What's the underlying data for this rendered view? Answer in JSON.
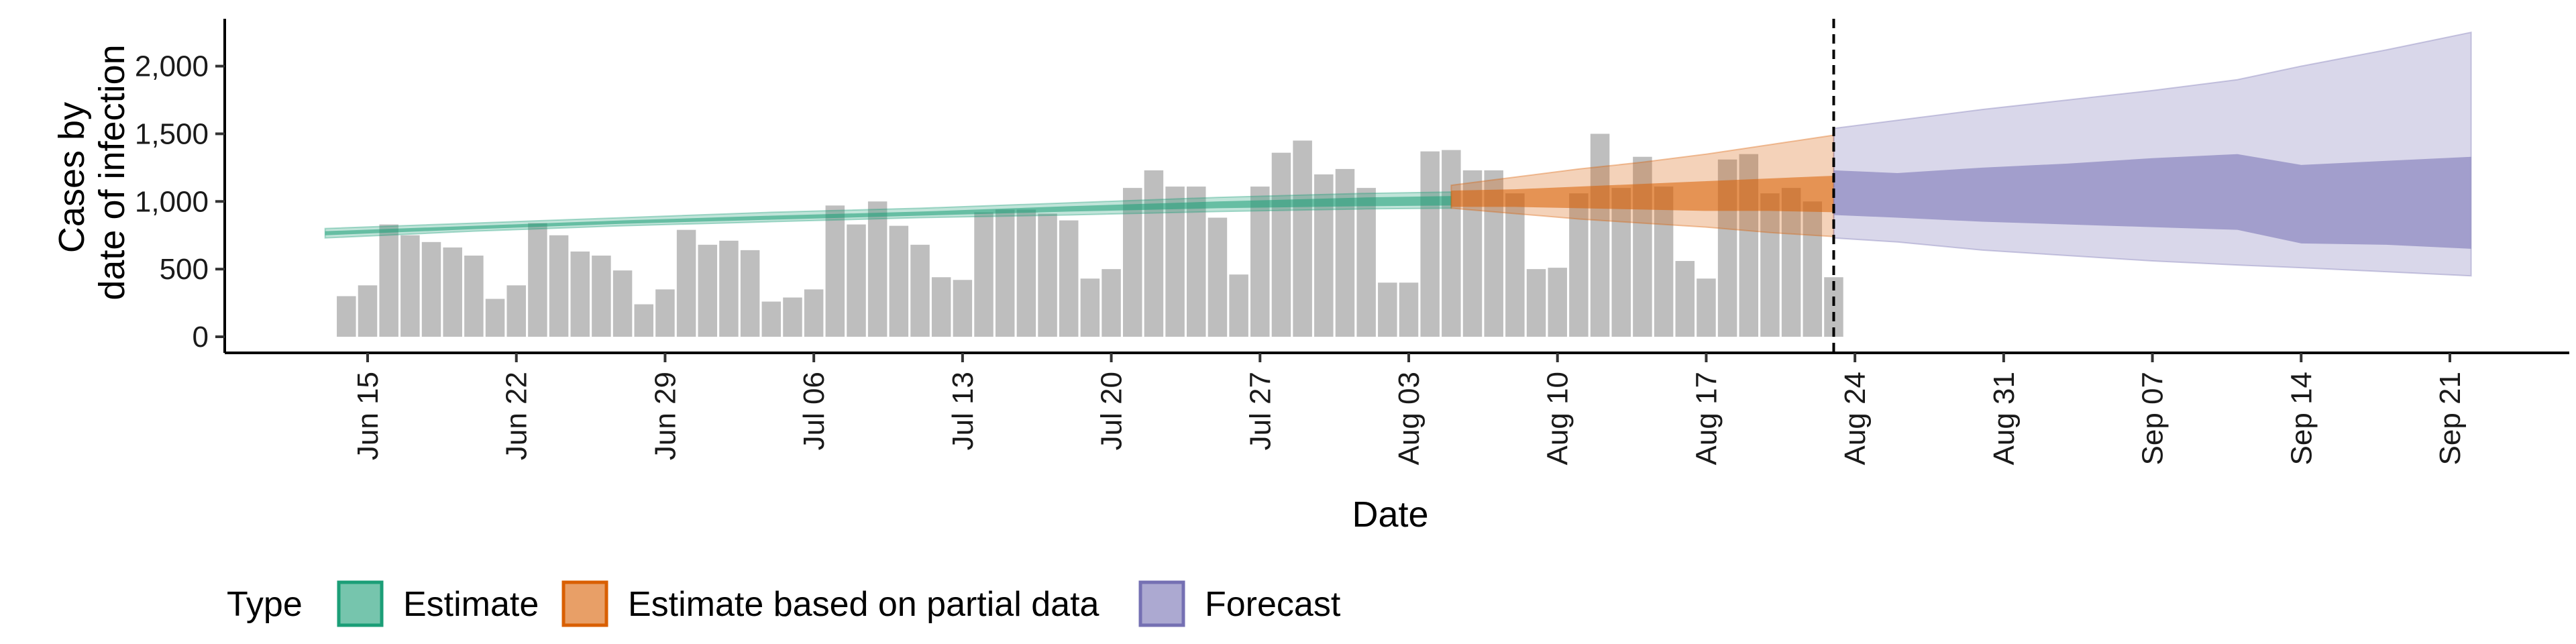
{
  "chart_data": {
    "type": "bar",
    "xlabel": "Date",
    "ylabel_lines": [
      "Cases by",
      "date of infection"
    ],
    "ylim": [
      0,
      2350
    ],
    "yticks": [
      0,
      500,
      1000,
      1500,
      2000
    ],
    "ytick_labels": [
      "0",
      "500",
      "1,000",
      "1,500",
      "2,000"
    ],
    "x_tick_labels": [
      "Jun 15",
      "Jun 22",
      "Jun 29",
      "Jul 06",
      "Jul 13",
      "Jul 20",
      "Jul 27",
      "Aug 03",
      "Aug 10",
      "Aug 17",
      "Aug 24",
      "Aug 31",
      "Sep 07",
      "Sep 14",
      "Sep 21"
    ],
    "bars": {
      "start_date": "2020-06-14",
      "values": [
        300,
        380,
        830,
        750,
        700,
        660,
        600,
        280,
        380,
        840,
        750,
        630,
        600,
        490,
        240,
        350,
        790,
        680,
        710,
        640,
        260,
        290,
        350,
        970,
        830,
        1000,
        820,
        680,
        440,
        420,
        920,
        940,
        940,
        910,
        860,
        430,
        500,
        1100,
        1230,
        1110,
        1110,
        880,
        460,
        1110,
        1360,
        1450,
        1200,
        1240,
        1100,
        400,
        400,
        1370,
        1380,
        1230,
        1230,
        1060,
        500,
        510,
        1060,
        1500,
        1100,
        1330,
        1110,
        560,
        430,
        1310,
        1350,
        1060,
        1100,
        1000,
        440
      ],
      "color": "#bebebe"
    },
    "estimate_date": "2020-08-23",
    "series": [
      {
        "name": "Estimate",
        "color": "#1b9e77",
        "dates": [
          "2020-06-13",
          "2020-06-20",
          "2020-06-27",
          "2020-07-04",
          "2020-07-11",
          "2020-07-18",
          "2020-07-25",
          "2020-08-01",
          "2020-08-05"
        ],
        "outer_lower": [
          730,
          780,
          820,
          850,
          880,
          900,
          925,
          945,
          950
        ],
        "outer_upper": [
          800,
          840,
          880,
          920,
          950,
          990,
          1030,
          1060,
          1070
        ],
        "inner_lower": [
          750,
          795,
          835,
          865,
          895,
          925,
          950,
          965,
          970
        ],
        "inner_upper": [
          780,
          820,
          860,
          895,
          925,
          965,
          1000,
          1030,
          1040
        ]
      },
      {
        "name": "Estimate based on partial data",
        "color": "#d95f02",
        "dates": [
          "2020-08-05",
          "2020-08-08",
          "2020-08-11",
          "2020-08-14",
          "2020-08-17",
          "2020-08-20",
          "2020-08-23"
        ],
        "outer_lower": [
          950,
          910,
          870,
          840,
          810,
          770,
          740
        ],
        "outer_upper": [
          1120,
          1180,
          1240,
          1290,
          1350,
          1420,
          1490
        ],
        "inner_lower": [
          960,
          960,
          950,
          940,
          930,
          930,
          920
        ],
        "inner_upper": [
          1080,
          1090,
          1110,
          1130,
          1150,
          1170,
          1190
        ]
      },
      {
        "name": "Forecast",
        "color": "#7570b3",
        "dates": [
          "2020-08-23",
          "2020-08-26",
          "2020-08-30",
          "2020-09-03",
          "2020-09-07",
          "2020-09-11",
          "2020-09-14",
          "2020-09-18",
          "2020-09-22"
        ],
        "outer_lower": [
          730,
          700,
          640,
          600,
          560,
          530,
          510,
          480,
          450
        ],
        "outer_upper": [
          1540,
          1600,
          1680,
          1750,
          1820,
          1900,
          2000,
          2120,
          2250
        ],
        "inner_lower": [
          900,
          880,
          850,
          830,
          810,
          790,
          690,
          680,
          650
        ],
        "inner_upper": [
          1230,
          1210,
          1250,
          1280,
          1320,
          1350,
          1270,
          1300,
          1330
        ]
      }
    ],
    "legend": {
      "title": "Type",
      "position": "bottom",
      "entries": [
        "Estimate",
        "Estimate based on partial data",
        "Forecast"
      ]
    },
    "grid": false
  }
}
